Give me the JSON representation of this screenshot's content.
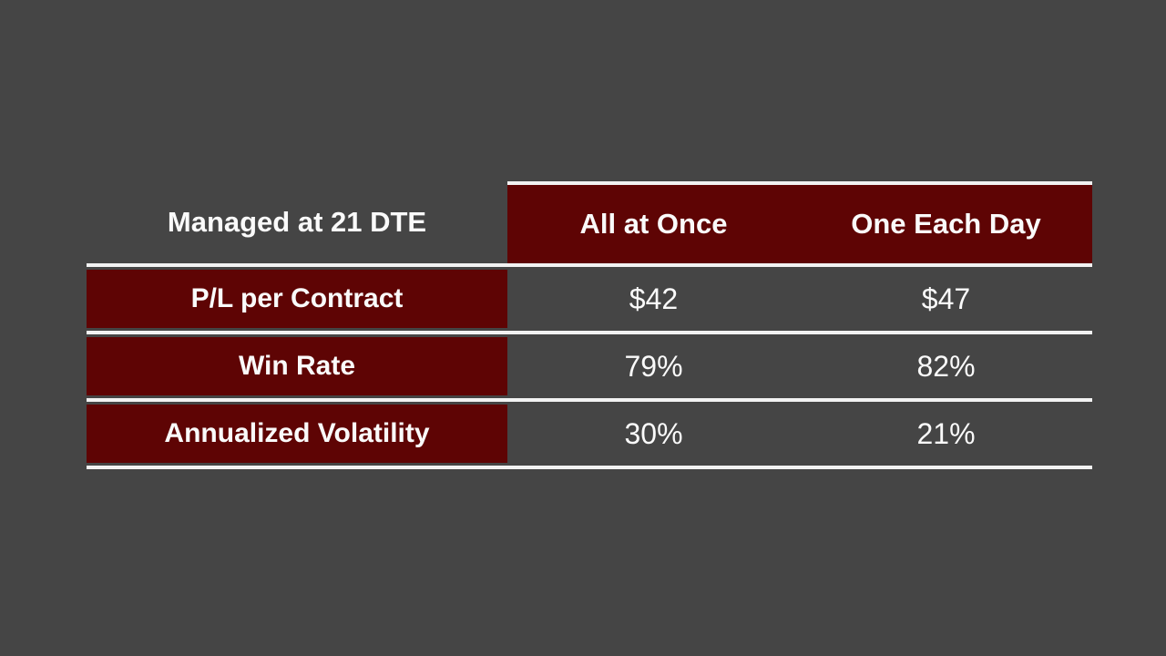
{
  "colors": {
    "background": "#454545",
    "maroon": "#5e0404",
    "line": "#f2f2f2",
    "text": "#fafafa"
  },
  "table": {
    "corner_label": "Managed at 21 DTE",
    "column_headers": [
      "All at Once",
      "One Each Day"
    ],
    "rows": [
      {
        "label": "P/L per Contract",
        "values": [
          "$42",
          "$47"
        ]
      },
      {
        "label": "Win Rate",
        "values": [
          "79%",
          "82%"
        ]
      },
      {
        "label": "Annualized Volatility",
        "values": [
          "30%",
          "21%"
        ]
      }
    ]
  },
  "chart_data": {
    "type": "table",
    "title": "Managed at 21 DTE",
    "columns": [
      "Managed at 21 DTE",
      "All at Once",
      "One Each Day"
    ],
    "rows": [
      [
        "P/L per Contract",
        "$42",
        "$47"
      ],
      [
        "Win Rate",
        "79%",
        "82%"
      ],
      [
        "Annualized Volatility",
        "30%",
        "21%"
      ]
    ]
  }
}
